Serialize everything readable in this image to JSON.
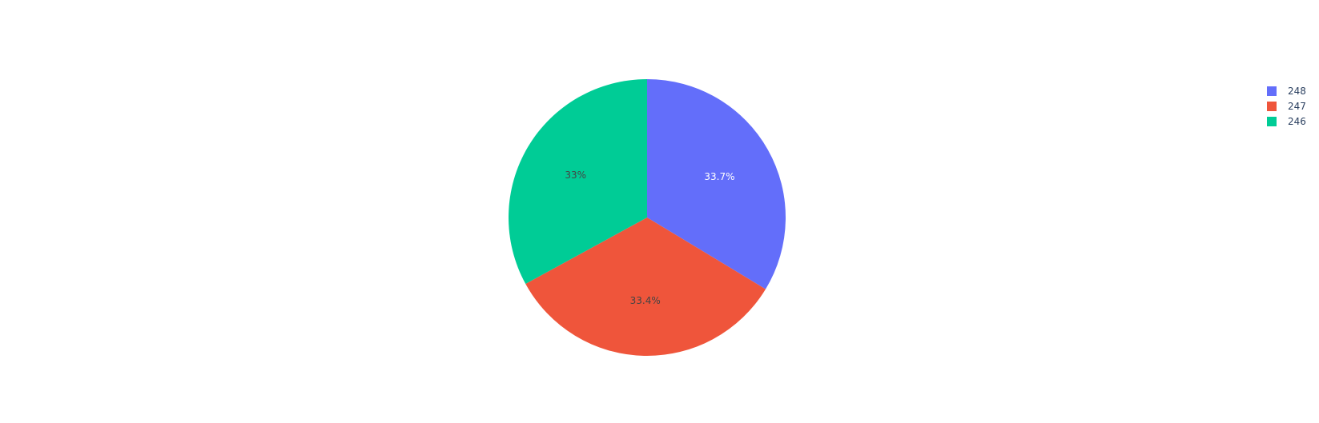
{
  "chart_data": {
    "type": "pie",
    "title": "",
    "labels": [
      "248",
      "247",
      "246"
    ],
    "values": [
      33.7,
      33.4,
      33.0
    ],
    "percent_labels": [
      "33.7%",
      "33.4%",
      "33%"
    ],
    "colors": [
      "#636efa",
      "#ef553b",
      "#00cc96"
    ],
    "label_text_colors": [
      "#ffffff",
      "#444444",
      "#444444"
    ],
    "start_angle_deg": 90,
    "direction": "clockwise",
    "legend": {
      "placement": "top-right",
      "items": [
        {
          "label": "248",
          "color": "#636efa"
        },
        {
          "label": "247",
          "color": "#ef553b"
        },
        {
          "label": "246",
          "color": "#00cc96"
        }
      ]
    }
  }
}
